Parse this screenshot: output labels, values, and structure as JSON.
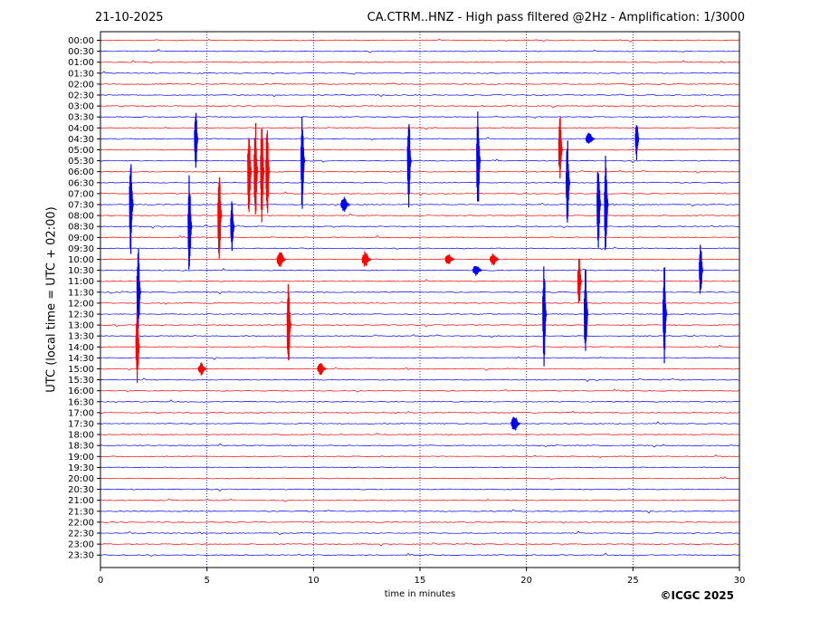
{
  "header": {
    "date": "21-10-2025",
    "title": "CA.CTRM..HNZ - High pass filtered @2Hz - Amplification: 1/3000"
  },
  "footer": {
    "copyright": "©ICGC 2025"
  },
  "colors": {
    "red": "#ff0000",
    "blue": "#0000ff",
    "grid": "#000080"
  },
  "chart_data": {
    "type": "line",
    "xlabel": "time in minutes",
    "ylabel": "UTC (local time = UTC + 02:00)",
    "xlim": [
      0,
      30
    ],
    "xticks": [
      0,
      5,
      10,
      15,
      20,
      25,
      30
    ],
    "yticks": [
      "00:00",
      "00:30",
      "01:00",
      "01:30",
      "02:00",
      "02:30",
      "03:00",
      "03:30",
      "04:00",
      "04:30",
      "05:00",
      "05:30",
      "06:00",
      "06:30",
      "07:00",
      "07:30",
      "08:00",
      "08:30",
      "09:00",
      "09:30",
      "10:00",
      "10:30",
      "11:00",
      "11:30",
      "12:00",
      "12:30",
      "13:00",
      "13:30",
      "14:00",
      "14:30",
      "15:00",
      "15:30",
      "16:00",
      "16:30",
      "17:00",
      "17:30",
      "18:00",
      "18:30",
      "19:00",
      "19:30",
      "20:00",
      "20:30",
      "21:00",
      "21:30",
      "22:00",
      "22:30",
      "23:00",
      "23:30"
    ],
    "trace_colors": [
      "red",
      "blue"
    ],
    "grid": "vertical dotted",
    "events": [
      {
        "row": "07:30",
        "minute": 1.45,
        "amplitude": 2.5
      },
      {
        "row": "08:30",
        "minute": 4.2,
        "amplitude": 2.5
      },
      {
        "row": "04:30",
        "minute": 4.5,
        "amplitude": 1.4
      },
      {
        "row": "08:00",
        "minute": 5.6,
        "amplitude": 2.5
      },
      {
        "row": "08:30",
        "minute": 6.2,
        "amplitude": 1.3
      },
      {
        "row": "06:00",
        "minute": 7.0,
        "amplitude": 2.5
      },
      {
        "row": "06:00",
        "minute": 7.3,
        "amplitude": 2.5
      },
      {
        "row": "06:00",
        "minute": 7.6,
        "amplitude": 2.5
      },
      {
        "row": "06:00",
        "minute": 7.85,
        "amplitude": 2.5
      },
      {
        "row": "05:30",
        "minute": 9.5,
        "amplitude": 2.5
      },
      {
        "row": "05:30",
        "minute": 14.5,
        "amplitude": 2.5
      },
      {
        "row": "05:30",
        "minute": 17.75,
        "amplitude": 2.5
      },
      {
        "row": "05:00",
        "minute": 21.6,
        "amplitude": 1.6
      },
      {
        "row": "06:30",
        "minute": 21.95,
        "amplitude": 2.2
      },
      {
        "row": "07:30",
        "minute": 23.4,
        "amplitude": 2.3
      },
      {
        "row": "07:30",
        "minute": 23.75,
        "amplitude": 2.5
      },
      {
        "row": "04:30",
        "minute": 25.2,
        "amplitude": 1.0
      },
      {
        "row": "11:30",
        "minute": 1.8,
        "amplitude": 2.3
      },
      {
        "row": "14:00",
        "minute": 1.75,
        "amplitude": 1.8
      },
      {
        "row": "13:00",
        "minute": 8.85,
        "amplitude": 2.5
      },
      {
        "row": "12:30",
        "minute": 20.85,
        "amplitude": 2.5
      },
      {
        "row": "11:00",
        "minute": 22.5,
        "amplitude": 1.3
      },
      {
        "row": "12:30",
        "minute": 22.8,
        "amplitude": 2.5
      },
      {
        "row": "12:30",
        "minute": 26.5,
        "amplitude": 2.5
      },
      {
        "row": "10:30",
        "minute": 28.2,
        "amplitude": 1.4
      },
      {
        "row": "10:00",
        "minute": 8.5,
        "amplitude": 0.4
      },
      {
        "row": "10:00",
        "minute": 12.5,
        "amplitude": 0.4
      },
      {
        "row": "10:00",
        "minute": 16.4,
        "amplitude": 0.3
      },
      {
        "row": "10:00",
        "minute": 18.5,
        "amplitude": 0.3
      },
      {
        "row": "10:30",
        "minute": 17.7,
        "amplitude": 0.3
      },
      {
        "row": "07:30",
        "minute": 11.5,
        "amplitude": 0.4
      },
      {
        "row": "15:00",
        "minute": 10.4,
        "amplitude": 0.3
      },
      {
        "row": "15:00",
        "minute": 4.8,
        "amplitude": 0.3
      },
      {
        "row": "17:30",
        "minute": 19.5,
        "amplitude": 0.4
      },
      {
        "row": "04:30",
        "minute": 23.0,
        "amplitude": 0.3
      }
    ]
  }
}
